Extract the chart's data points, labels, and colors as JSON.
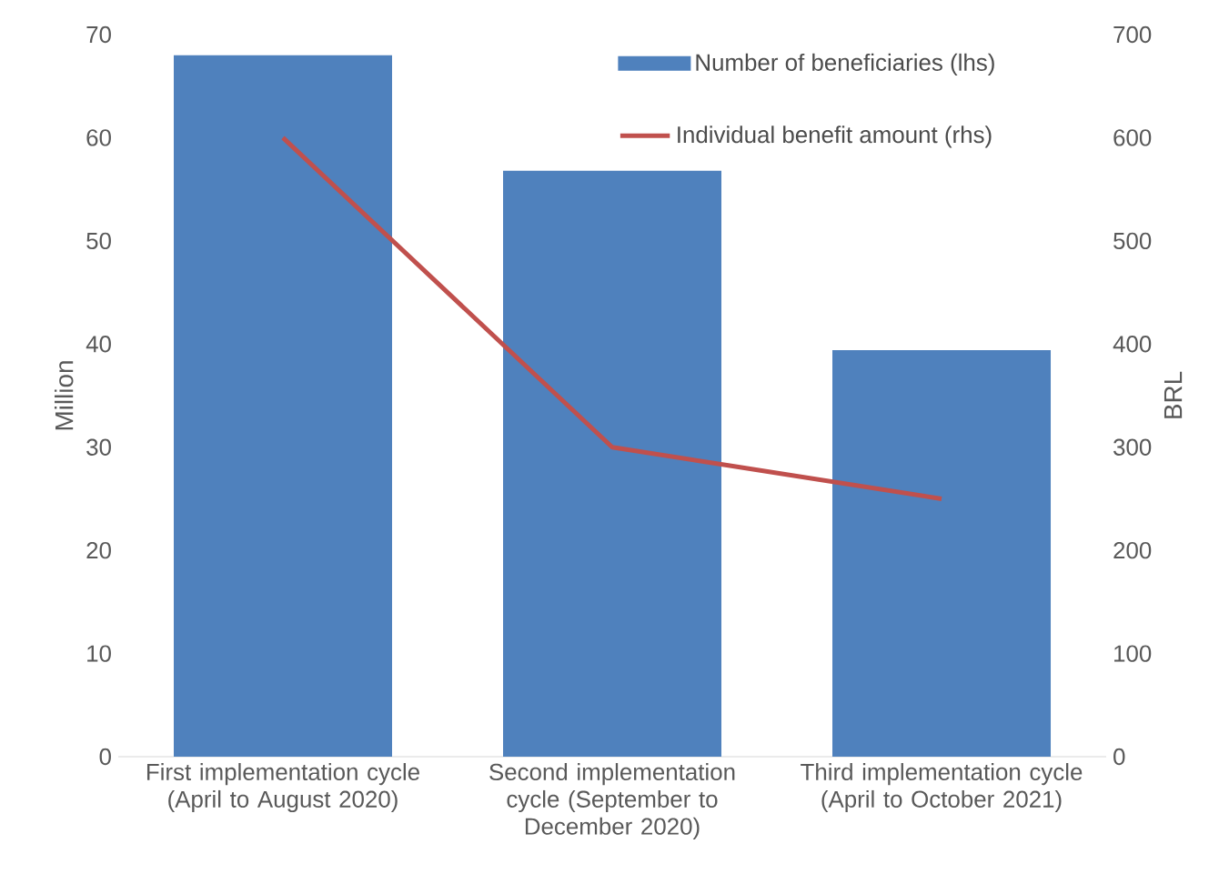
{
  "chart_data": {
    "type": "bar",
    "categories": [
      "First implementation cycle (April to August 2020)",
      "Second implementation cycle  (September to December 2020)",
      "Third implementation cycle  (April to October 2021)"
    ],
    "series": [
      {
        "name": "Number of beneficiaries (lhs)",
        "type": "bar",
        "color": "#4f81bd",
        "values": [
          68,
          56.8,
          39.4
        ]
      },
      {
        "name": "Individual benefit amount (rhs)",
        "type": "line",
        "axis": "y2",
        "color": "#c0504d",
        "values": [
          600,
          300,
          250
        ]
      }
    ],
    "ylabel": "Million",
    "y2label": "BRL",
    "ylim": [
      0,
      70
    ],
    "yticks": [
      0,
      10,
      20,
      30,
      40,
      50,
      60,
      70
    ],
    "y2lim": [
      0,
      700
    ],
    "y2ticks": [
      0,
      100,
      200,
      300,
      400,
      500,
      600,
      700
    ],
    "legend": "top right"
  }
}
